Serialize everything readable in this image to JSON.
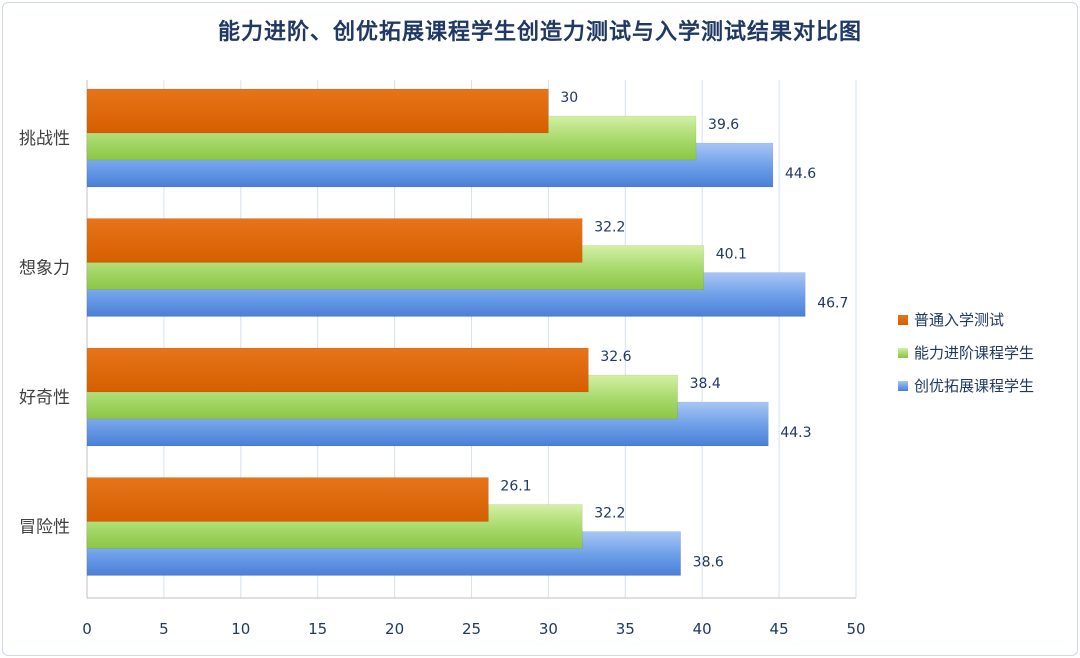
{
  "chart_data": {
    "type": "bar",
    "orientation": "horizontal",
    "title": "能力进阶、创优拓展课程学生创造力测试与入学测试结果对比图",
    "categories": [
      "挑战性",
      "想象力",
      "好奇性",
      "冒险性"
    ],
    "series": [
      {
        "name": "普通入学测试",
        "color": "#e36c0a",
        "values": [
          30,
          32.2,
          32.6,
          26.1
        ],
        "labels": [
          "30",
          "32.2",
          "32.6",
          "26.1"
        ]
      },
      {
        "name": "能力进阶课程学生",
        "color": "#9bd25a",
        "values": [
          39.6,
          40.1,
          38.4,
          32.2
        ],
        "labels": [
          "39.6",
          "40.1",
          "38.4",
          "32.2"
        ]
      },
      {
        "name": "创优拓展课程学生",
        "color": "#5b8ee0",
        "values": [
          44.6,
          46.7,
          44.3,
          38.6
        ],
        "labels": [
          "44.6",
          "46.7",
          "44.3",
          "38.6"
        ]
      }
    ],
    "xlim": [
      0,
      50
    ],
    "ticks": [
      "0",
      "5",
      "10",
      "15",
      "20",
      "25",
      "30",
      "35",
      "40",
      "45",
      "50"
    ],
    "grid": true,
    "legend_position": "right"
  }
}
